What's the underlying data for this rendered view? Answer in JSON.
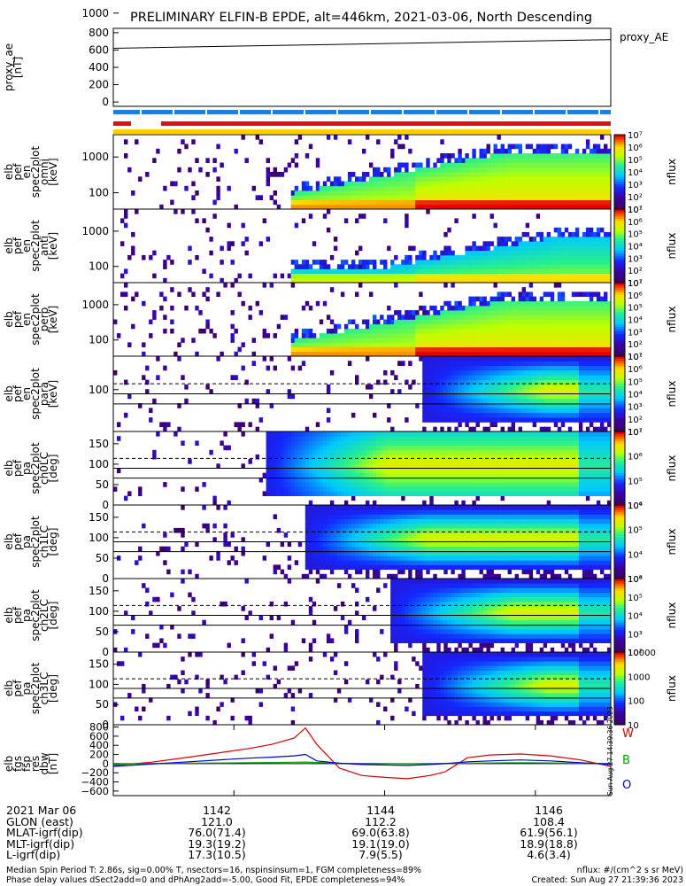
{
  "title": "PRELIMINARY ELFIN-B EPDE, alt=446km, 2021-03-06, North Descending",
  "chart_data": [
    {
      "type": "line",
      "name": "proxy_ae",
      "ylabel_lines": [
        "proxy_ae",
        "[nT]"
      ],
      "legend": "proxy_AE",
      "ylim": [
        -50,
        850
      ],
      "yticks": [
        "0",
        "200",
        "400",
        "600",
        "800"
      ],
      "x": [
        1140.4,
        1147.0
      ],
      "values": [
        620,
        720
      ]
    },
    {
      "type": "heatmap",
      "ylabel_lines": [
        "elb",
        "pef",
        "en",
        "spec2plot",
        "omni",
        "[keV]"
      ],
      "yticks": [
        "100",
        "1000"
      ],
      "colorbar_label": "nflux",
      "cticks": [
        "10¹",
        "10²",
        "10³",
        "10⁴",
        "10⁵",
        "10⁶",
        "10⁷"
      ]
    },
    {
      "type": "heatmap",
      "ylabel_lines": [
        "elb",
        "pef",
        "en",
        "spec2plot",
        "anti",
        "[keV]"
      ],
      "yticks": [
        "100",
        "1000"
      ],
      "colorbar_label": "nflux",
      "cticks": [
        "10¹",
        "10²",
        "10³",
        "10⁴",
        "10⁵",
        "10⁶",
        "10⁷"
      ]
    },
    {
      "type": "heatmap",
      "ylabel_lines": [
        "elb",
        "pef",
        "en",
        "spec2plot",
        "perp",
        "[keV]"
      ],
      "yticks": [
        "100",
        "1000"
      ],
      "colorbar_label": "nflux",
      "cticks": [
        "10¹",
        "10²",
        "10³",
        "10⁴",
        "10⁵",
        "10⁶",
        "10⁷"
      ]
    },
    {
      "type": "heatmap",
      "ylabel_lines": [
        "elb",
        "pef",
        "en",
        "spec2plot",
        "para",
        "[keV]"
      ],
      "yticks": [
        "100",
        "1000"
      ],
      "colorbar_label": "nflux",
      "cticks": [
        "10¹",
        "10²",
        "10³",
        "10⁴",
        "10⁵",
        "10⁶",
        "10⁷"
      ]
    },
    {
      "type": "heatmap",
      "ylabel_lines": [
        "elb",
        "pef",
        "pa",
        "spec2plot",
        "ch0LC",
        "[deg]"
      ],
      "yticks": [
        "0",
        "50",
        "100",
        "150"
      ],
      "colorbar_label": "nflux",
      "cticks": [
        "10⁴",
        "10⁵",
        "10⁶",
        "10⁷"
      ]
    },
    {
      "type": "heatmap",
      "ylabel_lines": [
        "elb",
        "pef",
        "pa",
        "spec2plot",
        "ch1LC",
        "[deg]"
      ],
      "yticks": [
        "0",
        "50",
        "100",
        "150"
      ],
      "colorbar_label": "nflux",
      "cticks": [
        "10³",
        "10⁴",
        "10⁵",
        "10⁶"
      ]
    },
    {
      "type": "heatmap",
      "ylabel_lines": [
        "elb",
        "pef",
        "pa",
        "spec2plot",
        "ch2LC",
        "[deg]"
      ],
      "yticks": [
        "0",
        "50",
        "100",
        "150"
      ],
      "colorbar_label": "nflux",
      "cticks": [
        "10²",
        "10³",
        "10⁴",
        "10⁵",
        "10⁶"
      ]
    },
    {
      "type": "heatmap",
      "ylabel_lines": [
        "elb",
        "pef",
        "pa",
        "spec2plot",
        "ch3LC",
        "[deg]"
      ],
      "yticks": [
        "0",
        "50",
        "100",
        "150"
      ],
      "colorbar_label": "nflux",
      "cticks": [
        "10",
        "100",
        "1000",
        "10000"
      ]
    },
    {
      "type": "line",
      "ylabel_lines": [
        "elb",
        "fgs",
        "fsp",
        "res",
        "dbw",
        "[nT]"
      ],
      "ylim": [
        -700,
        850
      ],
      "yticks": [
        "−600",
        "−400",
        "−200",
        "0",
        "200",
        "400",
        "600",
        "800"
      ],
      "x": [
        1140.4,
        1140.9,
        1141.4,
        1141.9,
        1142.2,
        1142.5,
        1142.8,
        1142.95,
        1143.1,
        1143.4,
        1143.7,
        1144.0,
        1144.3,
        1144.6,
        1144.8,
        1145.1,
        1145.4,
        1145.8,
        1146.2,
        1146.6,
        1147.0
      ],
      "series": [
        {
          "name": "W",
          "color": "#d40000",
          "values": [
            -40,
            30,
            140,
            260,
            330,
            420,
            560,
            780,
            420,
            -100,
            -260,
            -300,
            -330,
            -260,
            -180,
            130,
            190,
            210,
            170,
            80,
            -60
          ]
        },
        {
          "name": "B",
          "color": "#00a000",
          "values": [
            -10,
            0,
            10,
            15,
            20,
            25,
            30,
            35,
            25,
            10,
            5,
            0,
            -5,
            0,
            5,
            10,
            15,
            20,
            15,
            10,
            5
          ]
        },
        {
          "name": "O",
          "color": "#0000d0",
          "values": [
            -60,
            -10,
            40,
            90,
            120,
            140,
            170,
            200,
            60,
            10,
            -20,
            -30,
            -40,
            -20,
            0,
            40,
            60,
            80,
            60,
            20,
            -20
          ]
        }
      ]
    }
  ],
  "xaxis": {
    "ticks": [
      {
        "label": "1142",
        "value": 1142
      },
      {
        "label": "1144",
        "value": 1144
      },
      {
        "label": "1146",
        "value": 1146
      }
    ],
    "range": [
      1140.4,
      1147.0
    ]
  },
  "footer": {
    "rows": [
      {
        "label": "2021 Mar 06",
        "v1": "1142",
        "v2": "1144",
        "v3": "1146"
      },
      {
        "label": "GLON (east)",
        "v1": "121.0",
        "v2": "112.2",
        "v3": "108.4"
      },
      {
        "label": "MLAT-igrf(dip)",
        "v1": "76.0(71.4)",
        "v2": "69.0(63.8)",
        "v3": "61.9(56.1)"
      },
      {
        "label": "MLT-igrf(dip)",
        "v1": "19.3(19.2)",
        "v2": "19.1(19.0)",
        "v3": "18.9(18.8)"
      },
      {
        "label": "L-igrf(dip)",
        "v1": "17.3(10.5)",
        "v2": "7.9(5.5)",
        "v3": "4.6(3.4)"
      }
    ],
    "note1": "Median Spin Period T: 2.86s, sig=0.00% T, nsectors=16, nspinsinsum=1, FGM completeness=89%",
    "note1r": "nflux: #/(cm^2 s sr MeV)",
    "note2": "Phase delay values dSect2add=0 and dPhAng2add=-5.00, Good Fit, EPDE completeness=94%",
    "note2r": "Created: Sun Aug 27 21:39:36 2023",
    "stamp": "Sun Aug 27 14:39:36 2023"
  },
  "colors": {
    "bar_blue": "#1f7fe0",
    "bar_red": "#e01010",
    "bar_yellow": "#ffd000"
  }
}
